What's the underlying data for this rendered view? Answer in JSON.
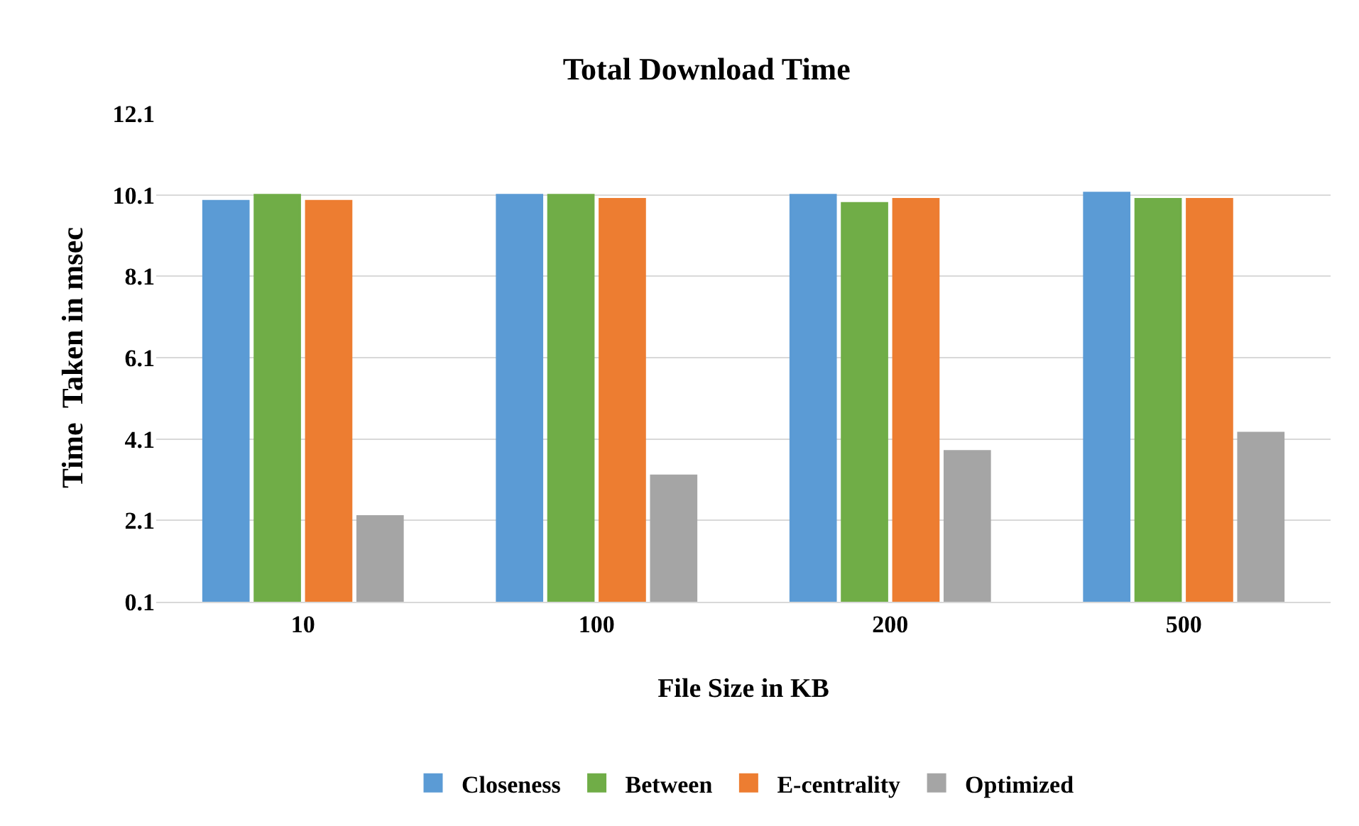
{
  "chart_data": {
    "type": "bar",
    "title": "Total Download Time",
    "xlabel": "File Size in KB",
    "ylabel": "Time  Taken in msec",
    "categories": [
      "10",
      "100",
      "200",
      "500"
    ],
    "series": [
      {
        "name": "Closeness",
        "color": "#5b9bd5",
        "values": [
          9.95,
          10.1,
          10.1,
          10.15
        ]
      },
      {
        "name": "Between",
        "color": "#70ad47",
        "values": [
          10.1,
          10.1,
          9.9,
          10.0
        ]
      },
      {
        "name": "E-centrality",
        "color": "#ed7d31",
        "values": [
          9.95,
          10.0,
          10.0,
          10.0
        ]
      },
      {
        "name": "Optimized",
        "color": "#a5a5a5",
        "values": [
          2.2,
          3.2,
          3.8,
          4.25
        ]
      }
    ],
    "ylim": [
      0.1,
      12.1
    ],
    "yticks": [
      0.1,
      2.1,
      4.1,
      6.1,
      8.1,
      10.1,
      12.1
    ],
    "grid": "y",
    "legend": "bottom"
  }
}
